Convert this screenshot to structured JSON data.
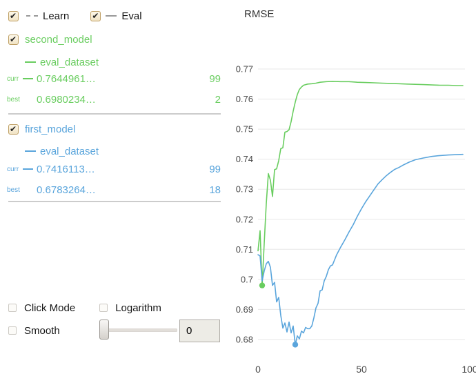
{
  "legend": {
    "learn_label": "Learn",
    "learn_checked": true,
    "eval_label": "Eval",
    "eval_checked": true
  },
  "models": [
    {
      "name": "second_model",
      "checked": true,
      "color": "#69cd5f",
      "dataset": "eval_dataset",
      "curr_label": "curr",
      "curr_value": "0.7644961…",
      "curr_iteration": "99",
      "best_label": "best",
      "best_value": "0.6980234…",
      "best_iteration": "2"
    },
    {
      "name": "first_model",
      "checked": true,
      "color": "#5aa5dc",
      "dataset": "eval_dataset",
      "curr_label": "curr",
      "curr_value": "0.7416113…",
      "curr_iteration": "99",
      "best_label": "best",
      "best_value": "0.6783264…",
      "best_iteration": "18"
    }
  ],
  "controls": {
    "click_mode_label": "Click Mode",
    "click_mode_checked": false,
    "logarithm_label": "Logarithm",
    "logarithm_checked": false,
    "smooth_label": "Smooth",
    "smooth_checked": false,
    "smooth_value": "0"
  },
  "chart_data": {
    "type": "line",
    "title": "RMSE",
    "xlabel": "",
    "ylabel": "",
    "xlim": [
      0,
      100
    ],
    "ylim": [
      0.68,
      0.77
    ],
    "xticks": [
      0,
      50,
      100
    ],
    "yticks": [
      0.77,
      0.76,
      0.75,
      0.74,
      0.73,
      0.72,
      0.71,
      0.7,
      0.69,
      0.68
    ],
    "grid": "horizontal",
    "legend_position": "none",
    "gridline_color": "#e7e7e7",
    "tick_color": "#4a4a4a",
    "series": [
      {
        "name": "second_model eval_dataset",
        "color": "#69cd5f",
        "style": "solid",
        "best_point": [
          2,
          0.698
        ],
        "points": [
          [
            0,
            0.7095
          ],
          [
            1,
            0.7162
          ],
          [
            2,
            0.698
          ],
          [
            3,
            0.712
          ],
          [
            4,
            0.7253
          ],
          [
            5,
            0.7352
          ],
          [
            6,
            0.733
          ],
          [
            7,
            0.7276
          ],
          [
            8,
            0.7365
          ],
          [
            9,
            0.7368
          ],
          [
            10,
            0.7395
          ],
          [
            11,
            0.7435
          ],
          [
            12,
            0.7438
          ],
          [
            13,
            0.749
          ],
          [
            14,
            0.7492
          ],
          [
            15,
            0.7498
          ],
          [
            16,
            0.7525
          ],
          [
            17,
            0.756
          ],
          [
            18,
            0.759
          ],
          [
            19,
            0.7615
          ],
          [
            20,
            0.7632
          ],
          [
            21,
            0.764
          ],
          [
            22,
            0.7646
          ],
          [
            24,
            0.765
          ],
          [
            26,
            0.7651
          ],
          [
            28,
            0.7653
          ],
          [
            30,
            0.7656
          ],
          [
            33,
            0.7658
          ],
          [
            36,
            0.7659
          ],
          [
            40,
            0.7658
          ],
          [
            44,
            0.7658
          ],
          [
            48,
            0.7656
          ],
          [
            52,
            0.7655
          ],
          [
            56,
            0.7654
          ],
          [
            60,
            0.7653
          ],
          [
            64,
            0.7652
          ],
          [
            68,
            0.7651
          ],
          [
            72,
            0.765
          ],
          [
            76,
            0.7649
          ],
          [
            80,
            0.7648
          ],
          [
            84,
            0.7647
          ],
          [
            88,
            0.7646
          ],
          [
            92,
            0.7646
          ],
          [
            96,
            0.7645
          ],
          [
            99,
            0.7645
          ]
        ]
      },
      {
        "name": "first_model eval_dataset",
        "color": "#5aa5dc",
        "style": "solid",
        "best_point": [
          18,
          0.6783
        ],
        "points": [
          [
            0,
            0.7082
          ],
          [
            1,
            0.7078
          ],
          [
            2,
            0.6995
          ],
          [
            3,
            0.7028
          ],
          [
            4,
            0.7052
          ],
          [
            5,
            0.706
          ],
          [
            6,
            0.704
          ],
          [
            7,
            0.698
          ],
          [
            8,
            0.699
          ],
          [
            9,
            0.6925
          ],
          [
            10,
            0.694
          ],
          [
            11,
            0.688
          ],
          [
            12,
            0.6838
          ],
          [
            13,
            0.6855
          ],
          [
            14,
            0.6825
          ],
          [
            15,
            0.6858
          ],
          [
            16,
            0.6822
          ],
          [
            17,
            0.6845
          ],
          [
            18,
            0.6783
          ],
          [
            19,
            0.6812
          ],
          [
            20,
            0.6802
          ],
          [
            21,
            0.6828
          ],
          [
            22,
            0.6822
          ],
          [
            23,
            0.684
          ],
          [
            24,
            0.6836
          ],
          [
            25,
            0.6836
          ],
          [
            26,
            0.6845
          ],
          [
            27,
            0.6872
          ],
          [
            28,
            0.6905
          ],
          [
            29,
            0.692
          ],
          [
            30,
            0.6962
          ],
          [
            31,
            0.6965
          ],
          [
            32,
            0.6995
          ],
          [
            33,
            0.701
          ],
          [
            34,
            0.7032
          ],
          [
            35,
            0.7045
          ],
          [
            36,
            0.7048
          ],
          [
            37,
            0.7065
          ],
          [
            38,
            0.7082
          ],
          [
            40,
            0.7108
          ],
          [
            42,
            0.7132
          ],
          [
            44,
            0.7158
          ],
          [
            46,
            0.7182
          ],
          [
            48,
            0.721
          ],
          [
            50,
            0.7235
          ],
          [
            52,
            0.7258
          ],
          [
            54,
            0.7278
          ],
          [
            56,
            0.7298
          ],
          [
            58,
            0.7318
          ],
          [
            60,
            0.7332
          ],
          [
            62,
            0.7345
          ],
          [
            64,
            0.7356
          ],
          [
            66,
            0.7366
          ],
          [
            68,
            0.7372
          ],
          [
            70,
            0.738
          ],
          [
            73,
            0.739
          ],
          [
            76,
            0.7398
          ],
          [
            80,
            0.7404
          ],
          [
            84,
            0.7409
          ],
          [
            88,
            0.7412
          ],
          [
            92,
            0.7414
          ],
          [
            96,
            0.7415
          ],
          [
            99,
            0.7416
          ]
        ]
      }
    ]
  }
}
